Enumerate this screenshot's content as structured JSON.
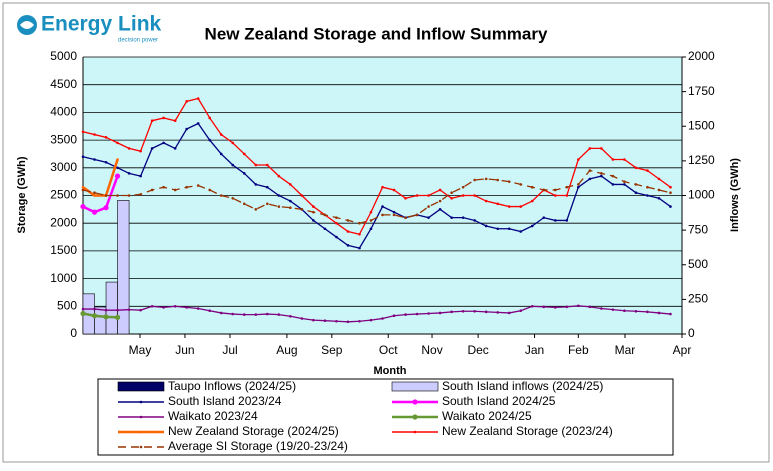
{
  "brand": {
    "name": "Energy Link",
    "tagline": "decision power"
  },
  "chart_data": {
    "type": "combo",
    "title": "New Zealand Storage and Inflow Summary",
    "x_label": "Month",
    "y_label": "Storage (GWh)",
    "y2_label": "Inflows (GWh)",
    "xlim": [
      0,
      52
    ],
    "xticks": [
      {
        "value": 4.95,
        "label": "May"
      },
      {
        "value": 8.85,
        "label": "Jun"
      },
      {
        "value": 12.76,
        "label": "Jul"
      },
      {
        "value": 17.7,
        "label": "Aug"
      },
      {
        "value": 21.6,
        "label": "Sep"
      },
      {
        "value": 26.5,
        "label": "Oct"
      },
      {
        "value": 30.3,
        "label": "Nov"
      },
      {
        "value": 34.3,
        "label": "Dec"
      },
      {
        "value": 39.2,
        "label": "Jan"
      },
      {
        "value": 43,
        "label": "Feb"
      },
      {
        "value": 47.05,
        "label": "Mar"
      },
      {
        "value": 52,
        "label": "Apr"
      }
    ],
    "ylim": [
      0,
      5000
    ],
    "yticks": [
      0,
      500,
      1000,
      1500,
      2000,
      2500,
      3000,
      3500,
      4000,
      4500,
      5000
    ],
    "y2lim": [
      0,
      2000
    ],
    "y2ticks": [
      0,
      250,
      500,
      750,
      1000,
      1250,
      1500,
      1750,
      2000
    ],
    "grid": true,
    "x": [
      0,
      1,
      2,
      3,
      4,
      5,
      6,
      7,
      8,
      9,
      10,
      11,
      12,
      13,
      14,
      15,
      16,
      17,
      18,
      19,
      20,
      21,
      22,
      23,
      24,
      25,
      26,
      27,
      28,
      29,
      30,
      31,
      32,
      33,
      34,
      35,
      36,
      37,
      38,
      39,
      40,
      41,
      42,
      43,
      44,
      45,
      46,
      47,
      48,
      49,
      50,
      51
    ],
    "series": [
      {
        "name": "Taupo Inflows (2024/25)",
        "kind": "bar",
        "axis": "y2",
        "color": "#000066",
        "x": [
          0,
          1,
          2,
          3
        ],
        "values": [
          40,
          30,
          35,
          35
        ]
      },
      {
        "name": "South Island inflows (2024/25)",
        "kind": "bar",
        "axis": "y2",
        "color": "#ccccff",
        "x": [
          0,
          1,
          2,
          3
        ],
        "values": [
          290,
          195,
          375,
          965
        ]
      },
      {
        "name": "South Island 2023/24",
        "kind": "line",
        "color": "#000080",
        "values": [
          3200,
          3150,
          3100,
          3000,
          2900,
          2850,
          3350,
          3450,
          3350,
          3700,
          3800,
          3500,
          3250,
          3050,
          2900,
          2700,
          2650,
          2500,
          2400,
          2250,
          2050,
          1900,
          1750,
          1600,
          1550,
          1900,
          2300,
          2200,
          2100,
          2150,
          2100,
          2250,
          2100,
          2100,
          2050,
          1950,
          1900,
          1900,
          1850,
          1950,
          2100,
          2050,
          2050,
          2650,
          2800,
          2850,
          2700,
          2700,
          2550,
          2500,
          2450,
          2300
        ]
      },
      {
        "name": "South Island 2024/25",
        "kind": "line",
        "marker": true,
        "width": 2.5,
        "color": "#ff00ff",
        "x": [
          0,
          1,
          2,
          3
        ],
        "values": [
          2300,
          2200,
          2280,
          2850
        ]
      },
      {
        "name": "Waikato 2023/24",
        "kind": "line",
        "color": "#800080",
        "values": [
          450,
          450,
          430,
          430,
          440,
          430,
          500,
          480,
          500,
          480,
          460,
          420,
          380,
          360,
          350,
          350,
          360,
          350,
          320,
          280,
          250,
          240,
          230,
          220,
          230,
          250,
          280,
          330,
          350,
          360,
          370,
          380,
          400,
          410,
          410,
          400,
          390,
          380,
          420,
          500,
          490,
          480,
          490,
          510,
          490,
          460,
          440,
          420,
          410,
          400,
          380,
          360
        ]
      },
      {
        "name": "Waikato 2024/25",
        "kind": "line",
        "marker": true,
        "width": 2.5,
        "color": "#669933",
        "x": [
          0,
          1,
          2,
          3
        ],
        "values": [
          370,
          330,
          310,
          300
        ]
      },
      {
        "name": "New Zealand Storage (2024/25)",
        "kind": "line",
        "width": 2.5,
        "color": "#ff6600",
        "x": [
          0,
          1,
          2,
          3
        ],
        "values": [
          2650,
          2500,
          2500,
          3150
        ]
      },
      {
        "name": "New Zealand Storage (2023/24)",
        "kind": "line",
        "color": "#ff0000",
        "values": [
          3650,
          3600,
          3550,
          3450,
          3350,
          3300,
          3850,
          3900,
          3850,
          4200,
          4250,
          3900,
          3600,
          3450,
          3250,
          3050,
          3050,
          2850,
          2700,
          2500,
          2300,
          2150,
          2000,
          1850,
          1800,
          2200,
          2650,
          2600,
          2450,
          2500,
          2500,
          2600,
          2450,
          2500,
          2500,
          2400,
          2350,
          2300,
          2300,
          2400,
          2600,
          2500,
          2500,
          3150,
          3350,
          3350,
          3150,
          3150,
          3000,
          2950,
          2800,
          2650
        ]
      },
      {
        "name": "Average SI Storage (19/20-23/24)",
        "kind": "line",
        "dashed": true,
        "color": "#993300",
        "values": [
          2600,
          2550,
          2500,
          2500,
          2500,
          2520,
          2600,
          2650,
          2600,
          2650,
          2680,
          2600,
          2500,
          2450,
          2350,
          2250,
          2350,
          2300,
          2280,
          2250,
          2200,
          2150,
          2100,
          2050,
          2000,
          2050,
          2150,
          2150,
          2100,
          2150,
          2300,
          2400,
          2550,
          2650,
          2780,
          2800,
          2780,
          2750,
          2700,
          2650,
          2600,
          2600,
          2650,
          2700,
          2950,
          2900,
          2850,
          2750,
          2700,
          2650,
          2600,
          2550
        ]
      }
    ]
  }
}
